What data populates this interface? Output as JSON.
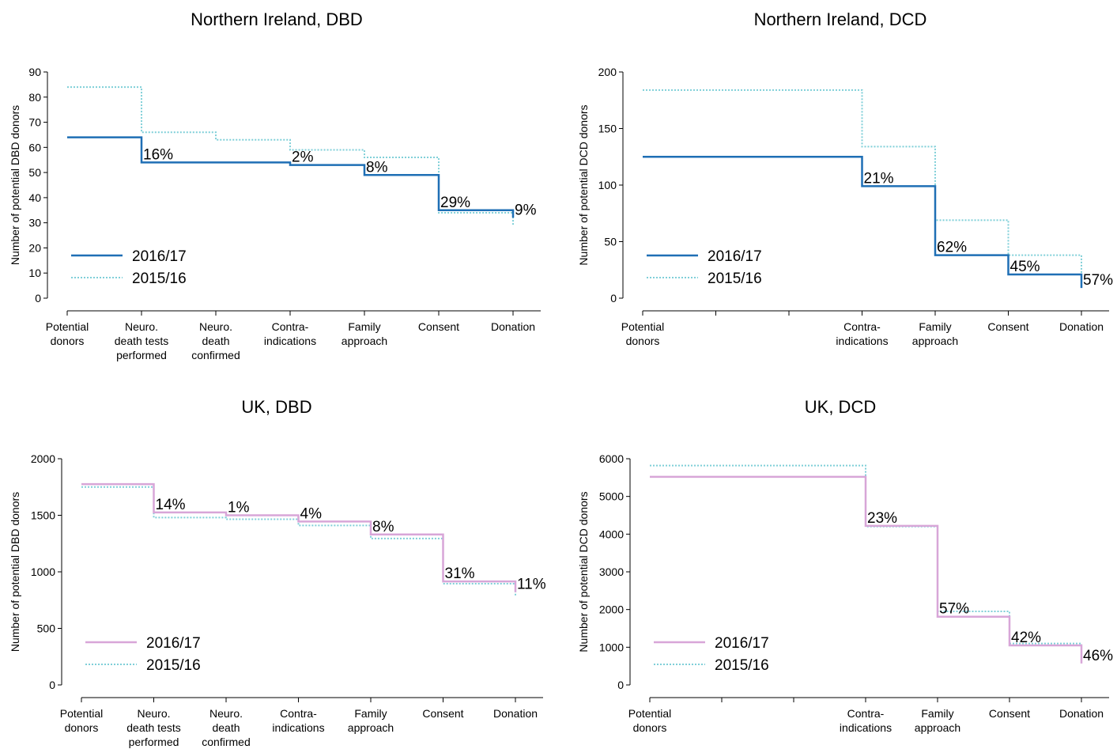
{
  "chart_data": [
    {
      "type": "line",
      "title": "Northern Ireland, DBD",
      "ylabel": "Number of potential DBD donors",
      "xlabel": "",
      "categories": [
        "Potential\ndonors",
        "Neuro.\ndeath tests\nperformed",
        "Neuro.\ndeath\nconfirmed",
        "Contra-\nindications",
        "Family\napproach",
        "Consent",
        "Donation"
      ],
      "ylim": [
        0,
        90
      ],
      "yticks": [
        0,
        10,
        20,
        30,
        40,
        50,
        60,
        70,
        80,
        90
      ],
      "series": [
        {
          "name": "2016/17",
          "values": [
            64,
            54,
            54,
            53,
            49,
            35,
            32
          ],
          "color": "#1f6fb5",
          "style": "solid"
        },
        {
          "name": "2015/16",
          "values": [
            84,
            66,
            63,
            59,
            56,
            34,
            29
          ],
          "color": "#7fcfd8",
          "style": "dotted"
        }
      ],
      "percent_labels": [
        {
          "index": 1,
          "text": "16%"
        },
        {
          "index": 3,
          "text": "2%"
        },
        {
          "index": 4,
          "text": "8%"
        },
        {
          "index": 5,
          "text": "29%"
        },
        {
          "index": 6,
          "text": "9%"
        }
      ],
      "legend": "bottom-left"
    },
    {
      "type": "line",
      "title": "Northern Ireland, DCD",
      "ylabel": "Number of potential DCD donors",
      "xlabel": "",
      "categories": [
        "Potential\ndonors",
        "",
        "",
        "Contra-\nindications",
        "Family\napproach",
        "Consent",
        "Donation"
      ],
      "ylim": [
        0,
        200
      ],
      "yticks": [
        0,
        50,
        100,
        150,
        200
      ],
      "series": [
        {
          "name": "2016/17",
          "values": [
            125,
            125,
            125,
            99,
            38,
            21,
            9
          ],
          "color": "#1f6fb5",
          "style": "solid"
        },
        {
          "name": "2015/16",
          "values": [
            184,
            184,
            184,
            134,
            69,
            38,
            16
          ],
          "color": "#7fcfd8",
          "style": "dotted"
        }
      ],
      "percent_labels": [
        {
          "index": 3,
          "text": "21%"
        },
        {
          "index": 4,
          "text": "62%"
        },
        {
          "index": 5,
          "text": "45%"
        },
        {
          "index": 6,
          "text": "57%"
        }
      ],
      "legend": "bottom-left"
    },
    {
      "type": "line",
      "title": "UK, DBD",
      "ylabel": "Number of potential DBD donors",
      "xlabel": "",
      "categories": [
        "Potential\ndonors",
        "Neuro.\ndeath tests\nperformed",
        "Neuro.\ndeath\nconfirmed",
        "Contra-\nindications",
        "Family\napproach",
        "Consent",
        "Donation"
      ],
      "ylim": [
        0,
        2000
      ],
      "yticks": [
        0,
        500,
        1000,
        1500,
        2000
      ],
      "series": [
        {
          "name": "2016/17",
          "values": [
            1775,
            1525,
            1500,
            1445,
            1330,
            915,
            820
          ],
          "color": "#d8a6d8",
          "style": "solid"
        },
        {
          "name": "2015/16",
          "values": [
            1750,
            1480,
            1465,
            1410,
            1295,
            895,
            790
          ],
          "color": "#7fcfd8",
          "style": "dotted"
        }
      ],
      "percent_labels": [
        {
          "index": 1,
          "text": "14%"
        },
        {
          "index": 2,
          "text": "1%"
        },
        {
          "index": 3,
          "text": "4%"
        },
        {
          "index": 4,
          "text": "8%"
        },
        {
          "index": 5,
          "text": "31%"
        },
        {
          "index": 6,
          "text": "11%"
        }
      ],
      "legend": "bottom-left"
    },
    {
      "type": "line",
      "title": "UK, DCD",
      "ylabel": "Number of potential DCD donors",
      "xlabel": "",
      "categories": [
        "Potential\ndonors",
        "",
        "",
        "Contra-\nindications",
        "Family\napproach",
        "Consent",
        "Donation"
      ],
      "ylim": [
        0,
        6000
      ],
      "yticks": [
        0,
        1000,
        2000,
        3000,
        4000,
        5000,
        6000
      ],
      "series": [
        {
          "name": "2016/17",
          "values": [
            5520,
            5520,
            5520,
            4220,
            1810,
            1050,
            570
          ],
          "color": "#d8a6d8",
          "style": "solid"
        },
        {
          "name": "2015/16",
          "values": [
            5820,
            5820,
            5820,
            4200,
            1950,
            1100,
            600
          ],
          "color": "#7fcfd8",
          "style": "dotted"
        }
      ],
      "percent_labels": [
        {
          "index": 3,
          "text": "23%"
        },
        {
          "index": 4,
          "text": "57%"
        },
        {
          "index": 5,
          "text": "42%"
        },
        {
          "index": 6,
          "text": "46%"
        }
      ],
      "legend": "bottom-left"
    }
  ]
}
